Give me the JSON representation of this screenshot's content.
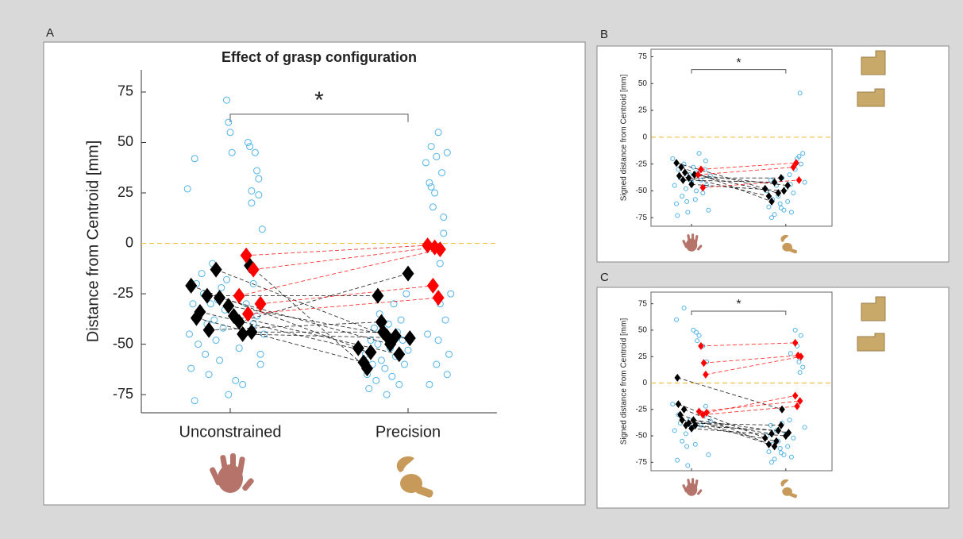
{
  "chart_data": [
    {
      "type": "scatter",
      "panel": "A",
      "title": "Effect of grasp configuration",
      "ylabel": "Distance from Centroid [mm]",
      "categories": [
        "Unconstrained",
        "Precision"
      ],
      "xlim": [
        0.5,
        2.5
      ],
      "ylim": [
        -84,
        86
      ],
      "yticks": [
        -75,
        -50,
        -25,
        0,
        25,
        50,
        75
      ],
      "reference_line": 0,
      "significance": {
        "label": "*",
        "x": [
          1,
          2
        ],
        "y": 64
      },
      "trials": [
        {
          "color": "#4fb3e8",
          "x": [
            0.76,
            0.77,
            0.78,
            0.79,
            0.8,
            0.81,
            0.82,
            0.83,
            0.84,
            0.85,
            0.86,
            0.87,
            0.88,
            0.89,
            0.9,
            0.91,
            0.92,
            0.93,
            0.94,
            0.95,
            0.96,
            0.97,
            0.98,
            0.99,
            1.0,
            1.01,
            1.03,
            1.05,
            1.07,
            1.09,
            1.1,
            1.11,
            1.12,
            1.13,
            1.14,
            1.15,
            1.16,
            1.17,
            1.18,
            1.19,
            0.98,
            0.99,
            0.8,
            1.13,
            1.15,
            1.17,
            1.12,
            1.16
          ],
          "values": [
            27,
            -45,
            -62,
            -30,
            42,
            -20,
            -50,
            -35,
            -15,
            -25,
            -55,
            -40,
            -65,
            -30,
            -10,
            -38,
            -48,
            -28,
            -58,
            -22,
            -42,
            -33,
            71,
            60,
            55,
            45,
            -68,
            -52,
            -70,
            -30,
            50,
            48,
            26,
            -40,
            45,
            36,
            32,
            -60,
            7,
            -45,
            -18,
            -75,
            -78,
            -20,
            -36,
            -55,
            20,
            24
          ]
        },
        {
          "color": "#4fb3e8",
          "x": [
            1.76,
            1.77,
            1.78,
            1.79,
            1.8,
            1.81,
            1.82,
            1.83,
            1.84,
            1.85,
            1.86,
            1.87,
            1.88,
            1.89,
            1.9,
            1.91,
            1.92,
            1.93,
            1.94,
            1.95,
            1.96,
            1.97,
            1.98,
            1.99,
            2.0,
            2.1,
            2.11,
            2.12,
            2.13,
            2.14,
            2.15,
            2.16,
            2.17,
            2.18,
            2.19,
            2.2,
            2.21,
            2.22,
            2.23,
            2.24,
            2.12,
            2.14,
            2.16,
            2.18,
            2.2,
            2.22,
            2.13,
            2.17
          ],
          "values": [
            -55,
            -65,
            -72,
            -48,
            -60,
            -42,
            -68,
            -50,
            -35,
            -58,
            -45,
            -62,
            -75,
            -40,
            -52,
            -66,
            -30,
            -56,
            -44,
            -70,
            -38,
            -48,
            -60,
            -25,
            -53,
            40,
            -45,
            30,
            48,
            -20,
            25,
            -60,
            55,
            -10,
            35,
            13,
            -38,
            45,
            -55,
            -25,
            -70,
            18,
            43,
            -30,
            5,
            -65,
            28,
            -48
          ]
        }
      ],
      "pairs": [
        {
          "color": "#000000",
          "x": [
            0.78,
            0.81,
            0.83,
            0.87,
            0.88,
            0.92,
            0.94,
            0.99,
            1.02,
            1.05,
            1.07,
            1.11,
            1.12
          ],
          "values": [
            -21,
            -37,
            -34,
            -26,
            -43,
            -13,
            -27,
            -31,
            -36,
            -39,
            -45,
            -11,
            -44
          ],
          "x2": [
            1.72,
            1.75,
            1.79,
            1.83,
            1.85,
            1.88,
            1.9,
            1.93,
            1.95,
            2.0,
            2.01,
            1.77,
            1.86
          ],
          "values2": [
            -52,
            -59,
            -54,
            -26,
            -39,
            -46,
            -50,
            -46,
            -55,
            -15,
            -47,
            -62,
            -44
          ]
        },
        {
          "color": "#ff0000",
          "x": [
            1.09,
            1.13,
            1.05,
            1.17,
            1.1
          ],
          "values": [
            -6,
            -13,
            -26,
            -30,
            -35
          ],
          "x2": [
            2.11,
            2.15,
            2.18,
            2.14,
            2.17
          ],
          "values2": [
            -1,
            -2,
            -3,
            -21,
            -27
          ]
        }
      ]
    },
    {
      "type": "scatter",
      "panel": "B",
      "ylabel": "Signed distance from Centroid [mm]",
      "categories": [
        null,
        null
      ],
      "xlim": [
        0.57,
        2.49
      ],
      "ylim": [
        -83,
        82
      ],
      "yticks": [
        -75,
        -50,
        -25,
        0,
        25,
        50,
        75
      ],
      "reference_line": 0,
      "significance": {
        "label": "*",
        "x": [
          1,
          2
        ],
        "y": 63
      },
      "trials": [
        {
          "color": "#4fb3e8",
          "x": [
            0.8,
            0.82,
            0.84,
            0.86,
            0.88,
            0.9,
            0.92,
            0.94,
            0.96,
            0.98,
            1.0,
            1.02,
            1.04,
            1.06,
            1.08,
            1.1,
            1.12,
            1.14,
            1.16,
            1.18,
            1.2,
            0.85,
            0.95,
            1.05,
            1.15
          ],
          "values": [
            -20,
            -45,
            -62,
            -30,
            -38,
            -55,
            -25,
            -48,
            -70,
            -35,
            -42,
            -28,
            -58,
            -33,
            -15,
            -40,
            -52,
            -30,
            -45,
            -68,
            -36,
            -73,
            -60,
            -50,
            -22
          ]
        },
        {
          "color": "#4fb3e8",
          "x": [
            1.8,
            1.82,
            1.84,
            1.86,
            1.88,
            1.9,
            1.92,
            1.94,
            1.96,
            1.98,
            2.0,
            2.02,
            2.04,
            2.06,
            2.08,
            2.1,
            2.12,
            2.14,
            2.16,
            2.18,
            2.2,
            1.85,
            1.95,
            2.05,
            2.15
          ],
          "values": [
            -50,
            -65,
            -40,
            -58,
            -72,
            -45,
            -55,
            -62,
            -38,
            -68,
            -48,
            -60,
            -35,
            -70,
            -52,
            -30,
            -20,
            -18,
            -25,
            -15,
            -42,
            -75,
            -66,
            -44,
            41
          ]
        }
      ],
      "pairs": [
        {
          "color": "#000000",
          "x": [
            0.84,
            0.87,
            0.89,
            0.91,
            0.93,
            0.97,
            1.0,
            1.03
          ],
          "values": [
            -24,
            -36,
            -28,
            -40,
            -33,
            -38,
            -44,
            -35
          ],
          "x2": [
            1.78,
            1.82,
            1.85,
            1.88,
            1.92,
            1.95,
            1.98,
            2.02
          ],
          "values2": [
            -48,
            -55,
            -60,
            -42,
            -52,
            -38,
            -50,
            -45
          ]
        },
        {
          "color": "#ff0000",
          "x": [
            1.07,
            1.1,
            1.12
          ],
          "values": [
            -35,
            -30,
            -47
          ],
          "x2": [
            2.08,
            2.11,
            2.14
          ],
          "values2": [
            -28,
            -24,
            -40
          ]
        }
      ]
    },
    {
      "type": "scatter",
      "panel": "C",
      "ylabel": "Signed distance from Centroid [mm]",
      "categories": [
        null,
        null
      ],
      "xlim": [
        0.57,
        2.49
      ],
      "ylim": [
        -83,
        86
      ],
      "yticks": [
        -75,
        -50,
        -25,
        0,
        25,
        50,
        75
      ],
      "reference_line": 0,
      "significance": {
        "label": "*",
        "x": [
          1,
          2
        ],
        "y": 68
      },
      "trials": [
        {
          "color": "#4fb3e8",
          "x": [
            0.8,
            0.82,
            0.84,
            0.86,
            0.88,
            0.9,
            0.92,
            0.94,
            0.96,
            0.98,
            1.0,
            1.02,
            1.04,
            1.06,
            1.08,
            1.1,
            1.12,
            1.14,
            1.16,
            1.18,
            1.2,
            0.85,
            0.95,
            1.05,
            1.15
          ],
          "values": [
            -20,
            -45,
            60,
            -30,
            -38,
            -55,
            71,
            -48,
            -78,
            -35,
            -42,
            50,
            -58,
            40,
            45,
            -40,
            35,
            -30,
            20,
            -68,
            -36,
            -73,
            -60,
            48,
            -22
          ]
        },
        {
          "color": "#4fb3e8",
          "x": [
            1.8,
            1.82,
            1.84,
            1.86,
            1.88,
            1.9,
            1.92,
            1.94,
            1.96,
            1.98,
            2.0,
            2.02,
            2.04,
            2.06,
            2.08,
            2.1,
            2.12,
            2.14,
            2.16,
            2.18,
            2.2,
            1.85,
            1.95,
            2.05,
            2.15
          ],
          "values": [
            -50,
            -65,
            -40,
            -58,
            -72,
            -45,
            -55,
            -62,
            -38,
            -68,
            -48,
            -60,
            -35,
            -70,
            -52,
            50,
            35,
            20,
            45,
            15,
            -42,
            -75,
            -66,
            28,
            10
          ]
        }
      ],
      "pairs": [
        {
          "color": "#000000",
          "x": [
            0.85,
            0.86,
            0.88,
            0.9,
            0.92,
            0.94,
            0.97,
            1.0,
            1.02,
            1.04
          ],
          "values": [
            5,
            -20,
            -30,
            -35,
            -25,
            -40,
            -38,
            -43,
            -35,
            -40
          ],
          "x2": [
            1.96,
            1.78,
            1.82,
            1.85,
            1.88,
            1.92,
            1.95,
            2.0,
            2.03,
            1.9
          ],
          "values2": [
            -25,
            -52,
            -58,
            -48,
            -60,
            -45,
            -40,
            -50,
            -47,
            -55
          ]
        },
        {
          "color": "#ff0000",
          "x": [
            1.1,
            1.13,
            1.15,
            1.08,
            1.12,
            1.16
          ],
          "values": [
            35,
            19,
            8,
            -27,
            -30,
            -28
          ],
          "x2": [
            2.1,
            2.13,
            2.16,
            2.15,
            2.12,
            2.1
          ],
          "values2": [
            38,
            26,
            25,
            -17,
            -22,
            -12
          ]
        }
      ]
    }
  ]
}
